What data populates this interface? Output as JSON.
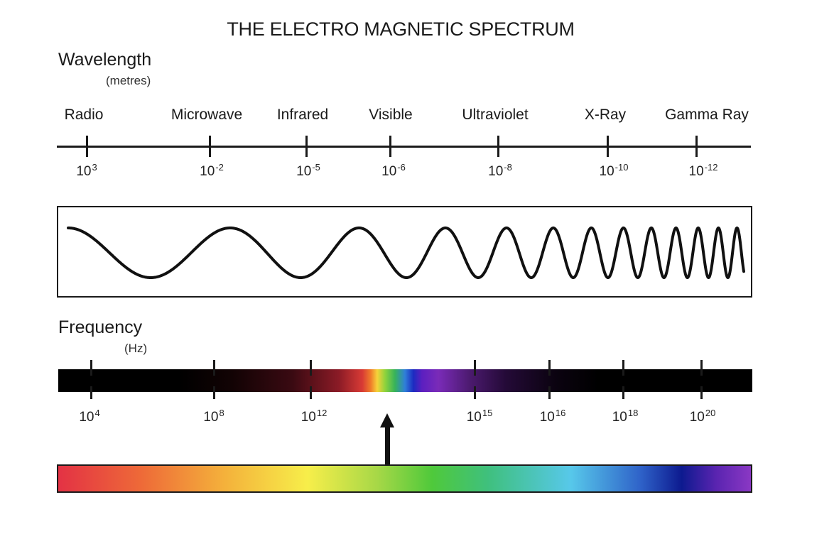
{
  "title": "THE ELECTRO MAGNETIC SPECTRUM",
  "wavelength": {
    "label": "Wavelength",
    "unit": "(metres)",
    "bands": [
      {
        "name": "Radio",
        "base": "10",
        "exp": "3"
      },
      {
        "name": "Microwave",
        "base": "10",
        "exp": "-2"
      },
      {
        "name": "Infrared",
        "base": "10",
        "exp": "-5"
      },
      {
        "name": "Visible",
        "base": "10",
        "exp": "-6"
      },
      {
        "name": "Ultraviolet",
        "base": "10",
        "exp": "-8"
      },
      {
        "name": "X-Ray",
        "base": "10",
        "exp": "-10"
      },
      {
        "name": "Gamma Ray",
        "base": "10",
        "exp": "-12"
      }
    ]
  },
  "frequency": {
    "label": "Frequency",
    "unit": "(Hz)",
    "values": [
      {
        "base": "10",
        "exp": "4"
      },
      {
        "base": "10",
        "exp": "8"
      },
      {
        "base": "10",
        "exp": "12"
      },
      {
        "base": "10",
        "exp": "15"
      },
      {
        "base": "10",
        "exp": "16"
      },
      {
        "base": "10",
        "exp": "18"
      },
      {
        "base": "10",
        "exp": "20"
      }
    ]
  },
  "colors": {
    "line": "#1a1a1a",
    "background": "#ffffff"
  }
}
